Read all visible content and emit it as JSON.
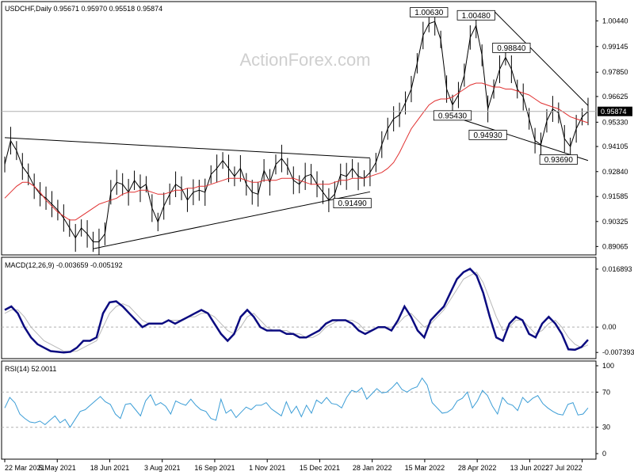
{
  "header": {
    "symbol_line": "USDCHF,Daily  0.95671 0.95970 0.95518 0.95874",
    "watermark": "ActionForex.com"
  },
  "colors": {
    "price": "#000000",
    "sma": "#e03030",
    "macd": "#0b0b80",
    "signal": "#b8b8b8",
    "rsi": "#3b9dd6",
    "grid": "#b0b0b0",
    "trendline": "#000000"
  },
  "chart_data": [
    {
      "type": "line",
      "panel": "price",
      "title": "USDCHF,Daily",
      "ohlc_last": {
        "open": 0.95671,
        "high": 0.9597,
        "low": 0.95518,
        "close": 0.95874
      },
      "ylim": [
        0.888,
        1.0125
      ],
      "yticks": [
        "1.00440",
        "0.99145",
        "0.97850",
        "0.96625",
        "0.95330",
        "0.94105",
        "0.92840",
        "0.91585",
        "0.90325",
        "0.89065"
      ],
      "current_price_label": "0.95874",
      "x_labels": [
        "22 Mar 2021",
        "5 May 2021",
        "18 Jun 2021",
        "3 Aug 2021",
        "16 Sep 2021",
        "1 Nov 2021",
        "15 Dec 2021",
        "28 Jan 2022",
        "15 Mar 2022",
        "28 Apr 2022",
        "13 Jun 2022",
        "27 Jul 2022"
      ],
      "series": [
        {
          "values": [
            0.932,
            0.944,
            0.939,
            0.931,
            0.927,
            0.921,
            0.917,
            0.915,
            0.912,
            0.909,
            0.905,
            0.9,
            0.895,
            0.9,
            0.897,
            0.893,
            0.893,
            0.897,
            0.918,
            0.923,
            0.922,
            0.918,
            0.924,
            0.92,
            0.922,
            0.91,
            0.903,
            0.911,
            0.917,
            0.922,
            0.92,
            0.914,
            0.918,
            0.919,
            0.918,
            0.927,
            0.93,
            0.934,
            0.93,
            0.926,
            0.93,
            0.922,
            0.918,
            0.917,
            0.929,
            0.923,
            0.932,
            0.935,
            0.931,
            0.924,
            0.922,
            0.926,
            0.927,
            0.922,
            0.918,
            0.914,
            0.917,
            0.927,
            0.926,
            0.93,
            0.926,
            0.925,
            0.928,
            0.933,
            0.942,
            0.95,
            0.955,
            0.957,
            0.963,
            0.97,
            0.983,
            0.997,
            1.003,
            1.004,
            0.995,
            0.97,
            0.962,
            0.967,
            0.977,
            0.996,
            1.002,
            0.987,
            0.96,
            0.97,
            0.98,
            0.986,
            0.98,
            0.97,
            0.966,
            0.955,
            0.944,
            0.942,
            0.954,
            0.96,
            0.958,
            0.945,
            0.941,
            0.95,
            0.956,
            0.9587
          ]
        },
        {
          "values": [
            0.915,
            0.918,
            0.921,
            0.923,
            0.923,
            0.921,
            0.918,
            0.914,
            0.911,
            0.908,
            0.906,
            0.904,
            0.904,
            0.906,
            0.908,
            0.91,
            0.912,
            0.913,
            0.914,
            0.915,
            0.917,
            0.918,
            0.918,
            0.919,
            0.919,
            0.918,
            0.917,
            0.917,
            0.918,
            0.919,
            0.919,
            0.92,
            0.92,
            0.921,
            0.921,
            0.922,
            0.923,
            0.924,
            0.925,
            0.925,
            0.925,
            0.924,
            0.923,
            0.923,
            0.924,
            0.924,
            0.924,
            0.925,
            0.925,
            0.925,
            0.924,
            0.923,
            0.922,
            0.922,
            0.922,
            0.922,
            0.923,
            0.924,
            0.924,
            0.925,
            0.925,
            0.925,
            0.926,
            0.927,
            0.928,
            0.93,
            0.933,
            0.938,
            0.944,
            0.95,
            0.954,
            0.958,
            0.962,
            0.964,
            0.965,
            0.965,
            0.966,
            0.968,
            0.97,
            0.972,
            0.973,
            0.973,
            0.972,
            0.971,
            0.971,
            0.97,
            0.97,
            0.969,
            0.968,
            0.967,
            0.965,
            0.963,
            0.962,
            0.961,
            0.96,
            0.958,
            0.956,
            0.955,
            0.954,
            0.953
          ]
        }
      ]
    },
    {
      "type": "line",
      "panel": "macd",
      "title": "MACD(12,26,9) -0.003659 -0.005192",
      "ylim": [
        -0.0085,
        0.0178
      ],
      "yticks": [
        "0.016893",
        "0.00",
        "-0.007393"
      ],
      "series": [
        {
          "name": "MACD",
          "values": [
            0.005,
            0.006,
            0.004,
            0.0,
            -0.003,
            -0.005,
            -0.006,
            -0.007,
            -0.0072,
            -0.0074,
            -0.0072,
            -0.006,
            -0.004,
            -0.004,
            -0.003,
            0.004,
            0.0072,
            0.0075,
            0.006,
            0.004,
            0.002,
            0.0,
            0.001,
            0.001,
            0.001,
            0.002,
            0.001,
            0.002,
            0.003,
            0.004,
            0.005,
            0.004,
            0.001,
            -0.002,
            -0.004,
            -0.002,
            0.003,
            0.005,
            0.003,
            0.0,
            -0.001,
            -0.001,
            -0.001,
            -0.002,
            -0.002,
            -0.003,
            -0.003,
            -0.002,
            -0.001,
            0.001,
            0.002,
            0.002,
            0.002,
            0.001,
            -0.001,
            -0.002,
            -0.001,
            0.0,
            0.0,
            -0.001,
            0.002,
            0.006,
            0.003,
            -0.001,
            -0.003,
            0.002,
            0.004,
            0.006,
            0.01,
            0.014,
            0.016,
            0.017,
            0.015,
            0.01,
            0.003,
            -0.003,
            -0.004,
            0.001,
            0.003,
            0.002,
            -0.002,
            -0.003,
            0.001,
            0.003,
            0.001,
            -0.002,
            -0.0065,
            -0.0066,
            -0.0058,
            -0.0037
          ]
        },
        {
          "name": "Signal",
          "values": [
            0.004,
            0.005,
            0.005,
            0.003,
            0.0,
            -0.002,
            -0.004,
            -0.005,
            -0.006,
            -0.007,
            -0.0072,
            -0.007,
            -0.006,
            -0.005,
            -0.004,
            0.0,
            0.004,
            0.006,
            0.0068,
            0.006,
            0.004,
            0.002,
            0.001,
            0.001,
            0.001,
            0.002,
            0.002,
            0.002,
            0.003,
            0.003,
            0.004,
            0.004,
            0.003,
            0.001,
            -0.001,
            -0.002,
            0.0,
            0.003,
            0.004,
            0.002,
            0.0,
            -0.001,
            -0.001,
            -0.001,
            -0.002,
            -0.002,
            -0.003,
            -0.003,
            -0.002,
            0.0,
            0.001,
            0.002,
            0.002,
            0.002,
            0.001,
            -0.001,
            -0.001,
            0.0,
            0.0,
            0.0,
            0.001,
            0.003,
            0.004,
            0.002,
            0.0,
            0.001,
            0.003,
            0.005,
            0.008,
            0.011,
            0.014,
            0.015,
            0.016,
            0.013,
            0.008,
            0.003,
            -0.001,
            0.0,
            0.002,
            0.002,
            0.0,
            -0.002,
            -0.001,
            0.001,
            0.002,
            0.0,
            -0.003,
            -0.005,
            -0.006,
            -0.0052
          ]
        }
      ]
    },
    {
      "type": "line",
      "panel": "rsi",
      "title": "RSI(14) 52.0011",
      "ylim": [
        0,
        100
      ],
      "yticks": [
        "100",
        "70",
        "30",
        "0"
      ],
      "levels": [
        70,
        30
      ],
      "series": [
        {
          "name": "RSI(14)",
          "values": [
            52,
            64,
            58,
            45,
            40,
            36,
            35,
            37,
            33,
            38,
            43,
            35,
            39,
            30,
            39,
            48,
            50,
            55,
            60,
            65,
            59,
            56,
            45,
            40,
            56,
            57,
            50,
            43,
            60,
            67,
            55,
            58,
            54,
            45,
            60,
            57,
            55,
            62,
            55,
            50,
            48,
            40,
            38,
            62,
            46,
            50,
            41,
            47,
            53,
            50,
            55,
            55,
            58,
            51,
            47,
            43,
            59,
            46,
            54,
            42,
            55,
            46,
            61,
            57,
            64,
            57,
            56,
            52,
            64,
            72,
            70,
            75,
            62,
            68,
            74,
            69,
            70,
            75,
            81,
            73,
            70,
            74,
            76,
            86,
            78,
            58,
            52,
            46,
            47,
            51,
            60,
            63,
            70,
            52,
            60,
            72,
            66,
            54,
            45,
            64,
            57,
            55,
            49,
            64,
            58,
            63,
            66,
            57,
            52,
            48,
            45,
            44,
            56,
            58,
            44,
            45,
            52
          ]
        }
      ]
    }
  ]
}
